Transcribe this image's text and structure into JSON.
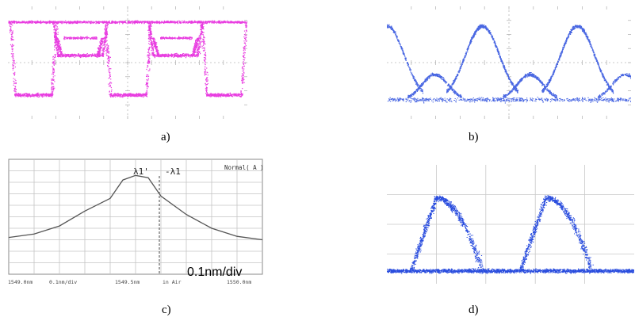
{
  "captions": {
    "a": "a)",
    "b": "b)",
    "c": "c)",
    "d": "d)"
  },
  "colors": {
    "magenta": "#e83ce0",
    "blue": "#2a4dde",
    "spectrum": "#555555",
    "grid": "#b8b8b8"
  },
  "panel_c": {
    "mode_label": "Normal( A )",
    "peak_labels": [
      "λ1'",
      "-λ1"
    ],
    "scale_label": "0.1nm/div",
    "bottom_labels": [
      "1549.0nm",
      "0.1nm/div",
      "1549.5nm",
      "in Air",
      "1550.0nm"
    ]
  },
  "chart_data": [
    {
      "panel": "a",
      "type": "line",
      "description_levels": "eye diagram, 3 levels",
      "levels": [
        0,
        0.55,
        1
      ],
      "bits_shown": 8
    },
    {
      "panel": "b",
      "type": "line",
      "levels": [
        0,
        0.35,
        1
      ],
      "bits_shown": 6
    },
    {
      "panel": "c",
      "type": "line",
      "x": [
        1549.0,
        1549.1,
        1549.2,
        1549.3,
        1549.4,
        1549.45,
        1549.5,
        1549.55,
        1549.6,
        1549.7,
        1549.8,
        1549.9,
        1550.0
      ],
      "y": [
        0.32,
        0.35,
        0.42,
        0.55,
        0.66,
        0.82,
        0.86,
        0.84,
        0.68,
        0.52,
        0.4,
        0.33,
        0.3
      ],
      "xticks": [
        "1549.0nm",
        "1549.5nm",
        "1550.0nm"
      ],
      "grid": true
    },
    {
      "panel": "d",
      "type": "scatter",
      "levels": [
        0,
        1
      ],
      "pulses": 2
    }
  ]
}
